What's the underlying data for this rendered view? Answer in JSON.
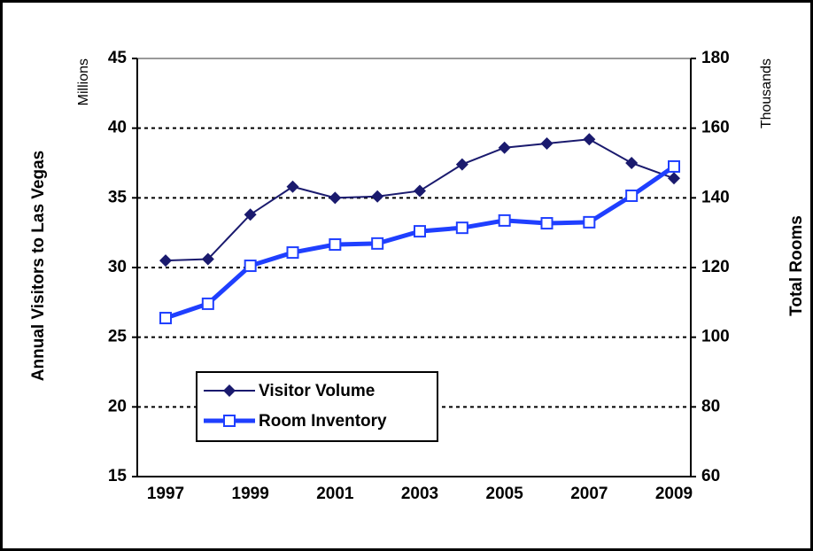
{
  "chart_data": {
    "type": "line",
    "categories": [
      "1997",
      null,
      "1999",
      null,
      "2001",
      null,
      "2003",
      null,
      "2005",
      null,
      "2007",
      null,
      "2009"
    ],
    "series": [
      {
        "name": "Visitor Volume",
        "color": "#1a1a6e",
        "values": [
          30.5,
          30.6,
          33.8,
          35.8,
          35.0,
          35.1,
          35.5,
          37.4,
          38.6,
          38.9,
          39.2,
          37.5,
          36.4
        ]
      },
      {
        "name": "Room Inventory",
        "color": "#1f3fff",
        "axis": "y2",
        "values": [
          105.5,
          109.6,
          120.5,
          124.3,
          126.6,
          126.9,
          130.4,
          131.4,
          133.5,
          132.7,
          133.0,
          140.6,
          149.0
        ]
      }
    ],
    "ylabel": "Annual Visitors to Las Vegas",
    "yunit": "Millions",
    "y2label": "Total Rooms",
    "y2unit": "Thousands",
    "ylim": [
      15,
      45
    ],
    "yticks": [
      15,
      20,
      25,
      30,
      35,
      40,
      45
    ],
    "y2lim": [
      60,
      180
    ],
    "y2ticks": [
      60,
      80,
      100,
      120,
      140,
      160,
      180
    ],
    "grid": true,
    "legend": "lower left"
  }
}
